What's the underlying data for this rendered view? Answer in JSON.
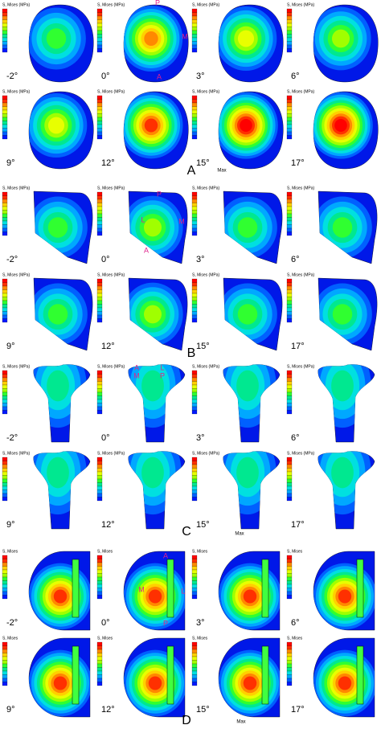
{
  "panels": [
    {
      "letter": "A",
      "header": "S, Mises (MPa)",
      "plots": [
        {
          "angle": "-2°"
        },
        {
          "angle": "0°",
          "annotations": [
            "P",
            "M",
            "A"
          ]
        },
        {
          "angle": "3°"
        },
        {
          "angle": "6°"
        },
        {
          "angle": "9°"
        },
        {
          "angle": "12°"
        },
        {
          "angle": "15°",
          "annotations": [
            "Max"
          ]
        },
        {
          "angle": "17°"
        }
      ]
    },
    {
      "letter": "B",
      "header": "S, Mises (MPa)",
      "plots": [
        {
          "angle": "-2°"
        },
        {
          "angle": "0°",
          "annotations": [
            "P",
            "L",
            "M",
            "A"
          ]
        },
        {
          "angle": "3°"
        },
        {
          "angle": "6°"
        },
        {
          "angle": "9°"
        },
        {
          "angle": "12°"
        },
        {
          "angle": "15°"
        },
        {
          "angle": "17°"
        }
      ]
    },
    {
      "letter": "C",
      "header": "S, Mises (MPa)",
      "plots": [
        {
          "angle": "-2°"
        },
        {
          "angle": "0°",
          "annotations": [
            "A",
            "L",
            "M",
            "P"
          ]
        },
        {
          "angle": "3°"
        },
        {
          "angle": "6°"
        },
        {
          "angle": "9°"
        },
        {
          "angle": "12°"
        },
        {
          "angle": "15°",
          "annotations": [
            "Max"
          ]
        },
        {
          "angle": "17°"
        }
      ]
    },
    {
      "letter": "D",
      "header": "S, Mises",
      "plots": [
        {
          "angle": "-2°"
        },
        {
          "angle": "0°",
          "annotations": [
            "A",
            "M",
            "L",
            "P"
          ]
        },
        {
          "angle": "3°"
        },
        {
          "angle": "6°"
        },
        {
          "angle": "9°"
        },
        {
          "angle": "12°"
        },
        {
          "angle": "15°",
          "annotations": [
            "Max"
          ]
        },
        {
          "angle": "17°"
        }
      ]
    }
  ]
}
